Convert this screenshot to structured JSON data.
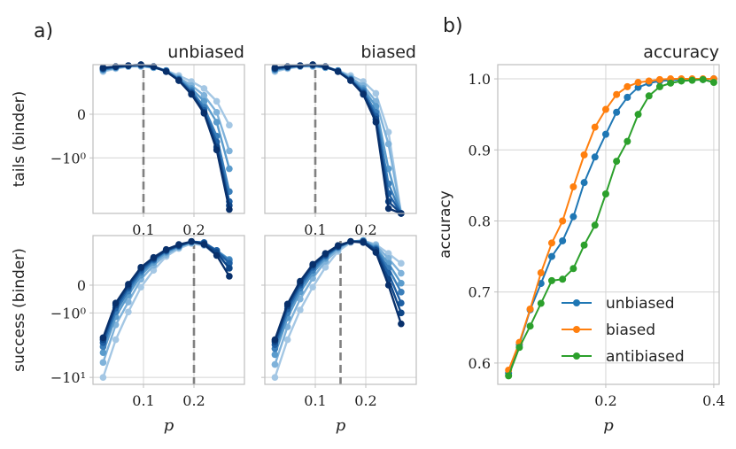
{
  "figure": {
    "panel_a_label": "a)",
    "panel_b_label": "b)"
  },
  "chart_data": [
    {
      "id": "a1",
      "type": "line",
      "title": "unbiased",
      "ylabel": "tails (binder)",
      "xlabel": "",
      "x": [
        0.02,
        0.045,
        0.07,
        0.095,
        0.12,
        0.145,
        0.17,
        0.195,
        0.22,
        0.245,
        0.27
      ],
      "xlim": [
        0.0,
        0.3
      ],
      "ylim": [
        -1.0,
        0.5
      ],
      "xticks": [
        {
          "v": 0.1,
          "label": "0.1"
        },
        {
          "v": 0.2,
          "label": "0.2"
        }
      ],
      "yticks": [
        {
          "v": 0.0,
          "label": "0"
        },
        {
          "v": -0.44,
          "label": "−10⁰"
        }
      ],
      "vline": 0.1,
      "colors": [
        "#a4c7e4",
        "#7fb2da",
        "#5a9bcc",
        "#3a7eba",
        "#1e5fa3",
        "#0e4687",
        "#08306b"
      ],
      "series": [
        {
          "values": [
            0.43,
            0.46,
            0.48,
            0.48,
            0.47,
            0.44,
            0.39,
            0.33,
            0.26,
            0.13,
            -0.11
          ]
        },
        {
          "values": [
            0.44,
            0.47,
            0.48,
            0.49,
            0.47,
            0.44,
            0.37,
            0.29,
            0.19,
            0.02,
            -0.37
          ]
        },
        {
          "values": [
            0.45,
            0.47,
            0.49,
            0.49,
            0.47,
            0.44,
            0.36,
            0.26,
            0.13,
            -0.08,
            -0.55
          ]
        },
        {
          "values": [
            0.45,
            0.47,
            0.49,
            0.49,
            0.48,
            0.44,
            0.35,
            0.24,
            0.07,
            -0.22,
            -0.78
          ]
        },
        {
          "values": [
            0.46,
            0.48,
            0.49,
            0.5,
            0.48,
            0.43,
            0.35,
            0.22,
            0.04,
            -0.28,
            -0.88
          ]
        },
        {
          "values": [
            0.46,
            0.48,
            0.49,
            0.5,
            0.48,
            0.43,
            0.34,
            0.21,
            0.02,
            -0.33,
            -0.92
          ]
        },
        {
          "values": [
            0.47,
            0.48,
            0.49,
            0.5,
            0.48,
            0.43,
            0.34,
            0.2,
            0.01,
            -0.36,
            -0.96
          ]
        }
      ]
    },
    {
      "id": "a2",
      "type": "line",
      "title": "biased",
      "ylabel": "",
      "xlabel": "",
      "x": [
        0.02,
        0.045,
        0.07,
        0.095,
        0.12,
        0.145,
        0.17,
        0.195,
        0.22,
        0.245,
        0.27
      ],
      "xlim": [
        0.0,
        0.3
      ],
      "ylim": [
        -1.0,
        0.5
      ],
      "xticks": [
        {
          "v": 0.1,
          "label": "0.1"
        },
        {
          "v": 0.2,
          "label": "0.2"
        }
      ],
      "yticks": [
        {
          "v": 0.0,
          "label": ""
        },
        {
          "v": -0.44,
          "label": ""
        }
      ],
      "vline": 0.1,
      "colors": [
        "#a4c7e4",
        "#7fb2da",
        "#5a9bcc",
        "#3a7eba",
        "#1e5fa3",
        "#0e4687",
        "#08306b"
      ],
      "series": [
        {
          "values": [
            0.43,
            0.46,
            0.48,
            0.48,
            0.47,
            0.44,
            0.39,
            0.33,
            0.21,
            -0.18,
            -1.0
          ]
        },
        {
          "values": [
            0.44,
            0.47,
            0.48,
            0.49,
            0.47,
            0.44,
            0.37,
            0.29,
            0.13,
            -0.3,
            -1.0
          ]
        },
        {
          "values": [
            0.45,
            0.47,
            0.49,
            0.49,
            0.47,
            0.44,
            0.36,
            0.26,
            0.08,
            -0.55,
            -1.0
          ]
        },
        {
          "values": [
            0.45,
            0.47,
            0.49,
            0.49,
            0.48,
            0.44,
            0.35,
            0.24,
            0.02,
            -0.7,
            -1.0
          ]
        },
        {
          "values": [
            0.46,
            0.48,
            0.49,
            0.5,
            0.48,
            0.43,
            0.35,
            0.22,
            -0.02,
            -0.8,
            -1.0
          ]
        },
        {
          "values": [
            0.46,
            0.48,
            0.49,
            0.5,
            0.48,
            0.43,
            0.34,
            0.21,
            -0.05,
            -0.88,
            -1.0
          ]
        },
        {
          "values": [
            0.47,
            0.48,
            0.49,
            0.5,
            0.48,
            0.43,
            0.34,
            0.2,
            -0.08,
            -0.95,
            -1.0
          ]
        }
      ]
    },
    {
      "id": "a3",
      "type": "line",
      "title": "",
      "ylabel": "success (binder)",
      "xlabel": "p",
      "x": [
        0.02,
        0.045,
        0.07,
        0.095,
        0.12,
        0.145,
        0.17,
        0.195,
        0.22,
        0.245,
        0.27
      ],
      "xlim": [
        0.0,
        0.3
      ],
      "ylim": [
        -1.0,
        0.5
      ],
      "xticks": [
        {
          "v": 0.1,
          "label": "0.1"
        },
        {
          "v": 0.2,
          "label": "0.2"
        }
      ],
      "yticks": [
        {
          "v": 0.0,
          "label": "0"
        },
        {
          "v": -0.28,
          "label": "−10⁰"
        },
        {
          "v": -0.93,
          "label": "−10¹"
        }
      ],
      "vline": 0.2,
      "colors": [
        "#a4c7e4",
        "#7fb2da",
        "#5a9bcc",
        "#3a7eba",
        "#1e5fa3",
        "#0e4687",
        "#08306b"
      ],
      "series": [
        {
          "values": [
            -0.93,
            -0.55,
            -0.27,
            -0.02,
            0.15,
            0.29,
            0.37,
            0.42,
            0.4,
            0.3,
            0.18
          ]
        },
        {
          "values": [
            -0.78,
            -0.4,
            -0.17,
            0.06,
            0.2,
            0.31,
            0.38,
            0.43,
            0.41,
            0.33,
            0.23
          ]
        },
        {
          "values": [
            -0.68,
            -0.32,
            -0.1,
            0.1,
            0.23,
            0.33,
            0.39,
            0.43,
            0.42,
            0.35,
            0.26
          ]
        },
        {
          "values": [
            -0.62,
            -0.27,
            -0.06,
            0.13,
            0.25,
            0.34,
            0.39,
            0.44,
            0.42,
            0.34,
            0.25
          ]
        },
        {
          "values": [
            -0.58,
            -0.23,
            -0.03,
            0.15,
            0.26,
            0.35,
            0.4,
            0.44,
            0.43,
            0.35,
            0.22
          ]
        },
        {
          "values": [
            -0.55,
            -0.2,
            -0.01,
            0.17,
            0.27,
            0.35,
            0.4,
            0.44,
            0.42,
            0.33,
            0.17
          ]
        },
        {
          "values": [
            -0.53,
            -0.18,
            0.01,
            0.18,
            0.28,
            0.36,
            0.41,
            0.44,
            0.41,
            0.3,
            0.09
          ]
        }
      ]
    },
    {
      "id": "a4",
      "type": "line",
      "title": "",
      "ylabel": "",
      "xlabel": "p",
      "x": [
        0.02,
        0.045,
        0.07,
        0.095,
        0.12,
        0.145,
        0.17,
        0.195,
        0.22,
        0.245,
        0.27
      ],
      "xlim": [
        0.0,
        0.3
      ],
      "ylim": [
        -1.0,
        0.5
      ],
      "xticks": [
        {
          "v": 0.1,
          "label": "0.1"
        },
        {
          "v": 0.2,
          "label": "0.2"
        }
      ],
      "yticks": [
        {
          "v": 0.0,
          "label": ""
        },
        {
          "v": -0.28,
          "label": ""
        },
        {
          "v": -0.93,
          "label": ""
        }
      ],
      "vline": 0.15,
      "colors": [
        "#a4c7e4",
        "#7fb2da",
        "#5a9bcc",
        "#3a7eba",
        "#1e5fa3",
        "#0e4687",
        "#08306b"
      ],
      "series": [
        {
          "values": [
            -0.93,
            -0.55,
            -0.25,
            -0.02,
            0.18,
            0.34,
            0.43,
            0.45,
            0.41,
            0.32,
            0.22
          ]
        },
        {
          "values": [
            -0.8,
            -0.42,
            -0.14,
            0.07,
            0.24,
            0.36,
            0.44,
            0.45,
            0.4,
            0.27,
            0.12
          ]
        },
        {
          "values": [
            -0.7,
            -0.33,
            -0.07,
            0.12,
            0.27,
            0.38,
            0.44,
            0.45,
            0.38,
            0.22,
            0.02
          ]
        },
        {
          "values": [
            -0.64,
            -0.28,
            -0.03,
            0.15,
            0.29,
            0.38,
            0.44,
            0.44,
            0.37,
            0.17,
            -0.07
          ]
        },
        {
          "values": [
            -0.6,
            -0.24,
            0.0,
            0.18,
            0.3,
            0.39,
            0.44,
            0.44,
            0.36,
            0.12,
            -0.18
          ]
        },
        {
          "values": [
            -0.57,
            -0.21,
            0.02,
            0.2,
            0.31,
            0.39,
            0.44,
            0.44,
            0.35,
            0.06,
            -0.28
          ]
        },
        {
          "values": [
            -0.55,
            -0.19,
            0.04,
            0.21,
            0.32,
            0.4,
            0.44,
            0.43,
            0.33,
            0.0,
            -0.39
          ]
        }
      ]
    },
    {
      "id": "b",
      "type": "line",
      "title": "accuracy",
      "ylabel": "accuracy",
      "xlabel": "p",
      "x": [
        0.02,
        0.04,
        0.06,
        0.08,
        0.1,
        0.12,
        0.14,
        0.16,
        0.18,
        0.2,
        0.22,
        0.24,
        0.26,
        0.28,
        0.3,
        0.32,
        0.34,
        0.36,
        0.38,
        0.4
      ],
      "xlim": [
        0.0,
        0.41
      ],
      "ylim": [
        0.57,
        1.02
      ],
      "xticks": [
        {
          "v": 0.2,
          "label": "0.2"
        },
        {
          "v": 0.4,
          "label": "0.4"
        }
      ],
      "yticks": [
        {
          "v": 0.6,
          "label": "0.6"
        },
        {
          "v": 0.7,
          "label": "0.7"
        },
        {
          "v": 0.8,
          "label": "0.8"
        },
        {
          "v": 0.9,
          "label": "0.9"
        },
        {
          "v": 1.0,
          "label": "1.0"
        }
      ],
      "legend_position": "lower-right",
      "series": [
        {
          "name": "unbiased",
          "color": "#1f77b4",
          "values": [
            0.586,
            0.626,
            0.675,
            0.712,
            0.75,
            0.772,
            0.806,
            0.854,
            0.89,
            0.922,
            0.953,
            0.974,
            0.988,
            0.994,
            0.997,
            0.998,
            0.999,
            0.999,
            0.999,
            1.0
          ]
        },
        {
          "name": "biased",
          "color": "#ff7f0e",
          "values": [
            0.59,
            0.629,
            0.676,
            0.727,
            0.769,
            0.8,
            0.848,
            0.893,
            0.932,
            0.957,
            0.978,
            0.989,
            0.995,
            0.997,
            0.999,
            1.0,
            1.0,
            1.0,
            1.0,
            1.0
          ]
        },
        {
          "name": "antibiased",
          "color": "#2ca02c",
          "values": [
            0.582,
            0.622,
            0.652,
            0.684,
            0.716,
            0.718,
            0.733,
            0.766,
            0.794,
            0.838,
            0.884,
            0.912,
            0.95,
            0.976,
            0.989,
            0.994,
            0.997,
            0.998,
            0.999,
            0.995
          ]
        }
      ]
    }
  ]
}
